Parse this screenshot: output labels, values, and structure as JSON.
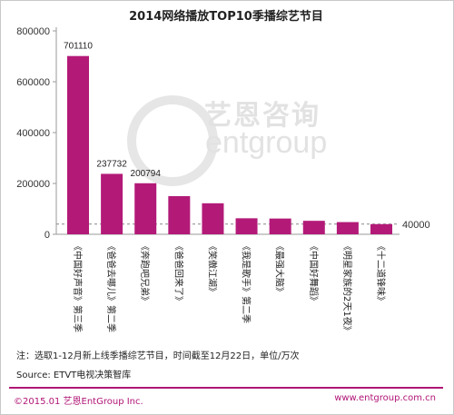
{
  "watermark": {
    "cn": "艺恩咨询",
    "en": "entgroup"
  },
  "footnote": "注：选取1-12月新上线季播综艺节目，时间截至12月22日，单位/万次",
  "source": "Source: ETVT电视决策智库",
  "copyright": "©2015.01  艺恩EntGroup Inc.",
  "website": "www.entgroup.com.cn",
  "chart_data": {
    "type": "bar",
    "title": "2014网络播放TOP10季播综艺节目",
    "categories": [
      "《中国好声音》第三季",
      "《爸爸去哪儿》第二季",
      "《奔跑吧兄弟》",
      "《爸爸回来了》",
      "《笑傲江湖》",
      "《我是歌手》第二季",
      "《最强大脑》",
      "《中国好舞蹈》",
      "《明星家族的2天1夜》",
      "《十二道锋味》"
    ],
    "values": [
      701110,
      237732,
      200794,
      150000,
      122000,
      63000,
      62000,
      53000,
      48000,
      40000
    ],
    "data_labels": [
      "701110",
      "237732",
      "200794",
      "",
      "",
      "",
      "",
      "",
      "",
      ""
    ],
    "yticks": [
      0,
      200000,
      400000,
      600000,
      800000
    ],
    "ylim": [
      0,
      800000
    ],
    "reference_line": {
      "value": 40000,
      "label": "40000"
    },
    "colors": {
      "bar": "#b31a78",
      "reference": "#888888"
    },
    "grid": false
  }
}
